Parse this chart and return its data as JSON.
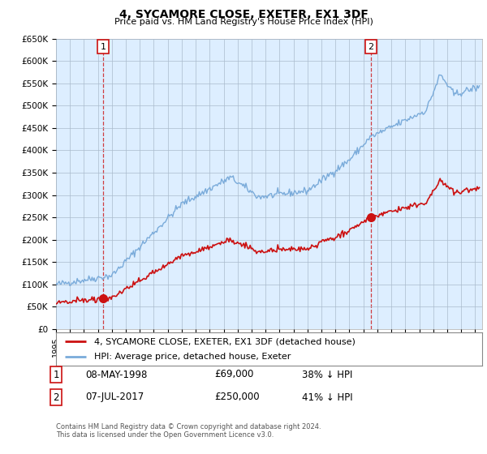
{
  "title": "4, SYCAMORE CLOSE, EXETER, EX1 3DF",
  "subtitle": "Price paid vs. HM Land Registry's House Price Index (HPI)",
  "ylim": [
    0,
    650000
  ],
  "yticks": [
    0,
    50000,
    100000,
    150000,
    200000,
    250000,
    300000,
    350000,
    400000,
    450000,
    500000,
    550000,
    600000,
    650000
  ],
  "ytick_labels": [
    "£0",
    "£50K",
    "£100K",
    "£150K",
    "£200K",
    "£250K",
    "£300K",
    "£350K",
    "£400K",
    "£450K",
    "£500K",
    "£550K",
    "£600K",
    "£650K"
  ],
  "hpi_color": "#7aabda",
  "price_color": "#cc1111",
  "sale1_year": 1998.37,
  "sale1_price": 69000,
  "sale1_label": "1",
  "sale2_year": 2017.52,
  "sale2_price": 250000,
  "sale2_label": "2",
  "legend_label1": "4, SYCAMORE CLOSE, EXETER, EX1 3DF (detached house)",
  "legend_label2": "HPI: Average price, detached house, Exeter",
  "footnote": "Contains HM Land Registry data © Crown copyright and database right 2024.\nThis data is licensed under the Open Government Licence v3.0.",
  "background_color": "#ffffff",
  "plot_bg_color": "#ddeeff",
  "grid_color": "#aabbcc",
  "xlim_left": 1995,
  "xlim_right": 2025.5
}
